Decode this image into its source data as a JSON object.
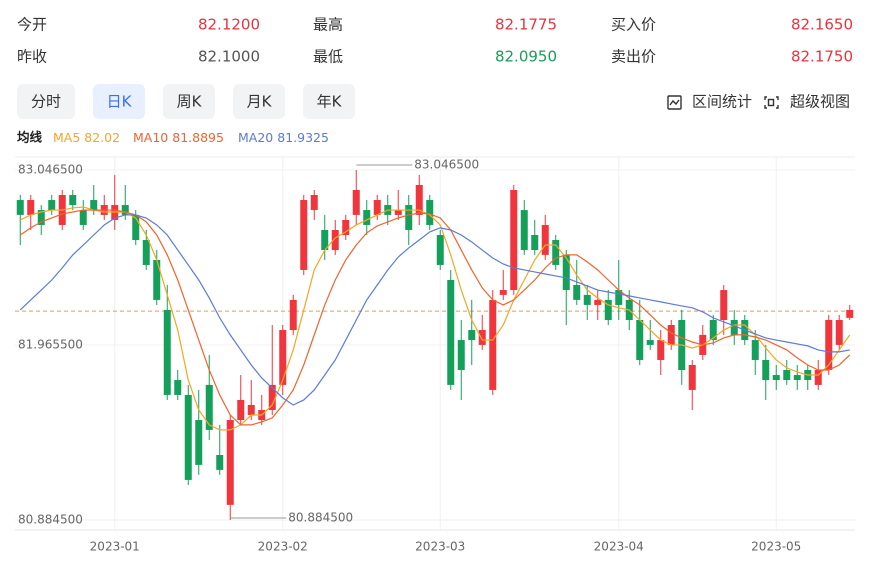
{
  "header": {
    "rows": [
      [
        {
          "label": "今开",
          "value": "82.1200",
          "tone": "up"
        },
        {
          "label": "最高",
          "value": "82.1775",
          "tone": "up"
        },
        {
          "label": "买入价",
          "value": "82.1650",
          "tone": "up"
        }
      ],
      [
        {
          "label": "昨收",
          "value": "82.1000",
          "tone": "flat"
        },
        {
          "label": "最低",
          "value": "82.0950",
          "tone": "down"
        },
        {
          "label": "卖出价",
          "value": "82.1750",
          "tone": "up"
        }
      ]
    ]
  },
  "tabs": [
    "分时",
    "日K",
    "周K",
    "月K",
    "年K"
  ],
  "active_tab": "日K",
  "tools": [
    "区间统计",
    "超级视图"
  ],
  "legend_title": "均线",
  "chart_data": {
    "type": "candlestick",
    "up_color": "#f0353d",
    "down_color": "#14a05a",
    "categories": [
      null,
      null,
      null,
      null,
      null,
      null,
      null,
      null,
      null,
      "2023-01",
      null,
      null,
      null,
      null,
      null,
      null,
      null,
      null,
      null,
      null,
      null,
      null,
      null,
      null,
      null,
      "2023-02",
      null,
      null,
      null,
      null,
      null,
      null,
      null,
      null,
      null,
      null,
      null,
      null,
      null,
      null,
      "2023-03",
      null,
      null,
      null,
      null,
      null,
      null,
      null,
      null,
      null,
      null,
      null,
      null,
      null,
      null,
      null,
      null,
      "2023-04",
      null,
      null,
      null,
      null,
      null,
      null,
      null,
      null,
      null,
      null,
      null,
      null,
      null,
      null,
      "2023-05",
      null,
      null,
      null,
      null,
      null,
      null,
      null
    ],
    "open": [
      82.861,
      82.769,
      82.799,
      82.861,
      82.707,
      82.892,
      82.799,
      82.861,
      82.769,
      82.738,
      82.83,
      82.769,
      82.614,
      82.491,
      82.182,
      81.749,
      81.657,
      81.502,
      81.719,
      81.286,
      80.978,
      81.502,
      81.533,
      81.502,
      81.564,
      81.719,
      82.058,
      82.429,
      82.799,
      82.676,
      82.552,
      82.645,
      82.769,
      82.799,
      82.769,
      82.83,
      82.769,
      82.83,
      82.769,
      82.861,
      82.645,
      82.367,
      81.996,
      82.058,
      81.966,
      81.688,
      82.275,
      82.305,
      82.799,
      82.645,
      82.522,
      82.614,
      82.522,
      82.336,
      82.275,
      82.213,
      82.244,
      82.305,
      82.244,
      82.12,
      81.996,
      81.873,
      81.966,
      82.12,
      81.688,
      81.904,
      82.12,
      82.12,
      82.12,
      82.12,
      81.996,
      81.873,
      81.78,
      81.811,
      81.78,
      81.811,
      81.719,
      81.811,
      81.966,
      82.133
    ],
    "close": [
      82.769,
      82.861,
      82.707,
      82.799,
      82.892,
      82.83,
      82.707,
      82.799,
      82.83,
      82.83,
      82.769,
      82.614,
      82.46,
      82.244,
      81.657,
      81.657,
      81.132,
      81.225,
      81.441,
      81.194,
      81.502,
      81.626,
      81.595,
      81.564,
      81.719,
      82.058,
      82.244,
      82.861,
      82.892,
      82.552,
      82.676,
      82.738,
      82.923,
      82.707,
      82.861,
      82.769,
      82.799,
      82.676,
      82.954,
      82.707,
      82.46,
      81.719,
      81.811,
      81.996,
      82.058,
      82.244,
      82.305,
      82.923,
      82.552,
      82.552,
      82.707,
      82.46,
      82.305,
      82.244,
      82.213,
      82.244,
      82.12,
      82.213,
      82.12,
      81.873,
      81.966,
      81.996,
      82.089,
      81.811,
      81.842,
      82.028,
      81.996,
      82.305,
      82.028,
      81.996,
      81.873,
      81.749,
      81.749,
      81.749,
      81.749,
      81.749,
      81.811,
      82.12,
      82.12,
      82.182
    ],
    "high": [
      82.892,
      82.892,
      82.83,
      82.892,
      82.923,
      82.923,
      82.861,
      82.954,
      82.892,
      83.016,
      82.954,
      82.799,
      82.676,
      82.552,
      82.336,
      81.811,
      81.719,
      81.688,
      81.904,
      81.472,
      81.533,
      81.78,
      81.749,
      81.657,
      82.089,
      82.089,
      82.275,
      82.892,
      82.923,
      82.769,
      82.738,
      82.769,
      83.0465,
      82.861,
      82.892,
      82.892,
      82.923,
      82.892,
      83.016,
      82.892,
      82.676,
      82.429,
      82.12,
      82.244,
      82.151,
      82.305,
      82.429,
      82.954,
      82.861,
      82.738,
      82.769,
      82.645,
      82.552,
      82.491,
      82.336,
      82.305,
      82.305,
      82.491,
      82.305,
      82.244,
      82.12,
      82.058,
      82.12,
      82.182,
      81.873,
      82.089,
      82.151,
      82.336,
      82.182,
      82.151,
      82.058,
      81.966,
      81.842,
      81.873,
      81.842,
      81.842,
      81.873,
      82.151,
      82.151,
      82.213
    ],
    "low": [
      82.583,
      82.676,
      82.645,
      82.769,
      82.676,
      82.799,
      82.676,
      82.769,
      82.738,
      82.676,
      82.738,
      82.583,
      82.429,
      82.213,
      81.626,
      81.626,
      81.101,
      81.163,
      81.379,
      81.163,
      80.8845,
      81.472,
      81.502,
      81.472,
      81.533,
      81.657,
      82.028,
      82.398,
      82.738,
      82.491,
      82.522,
      82.614,
      82.707,
      82.645,
      82.738,
      82.707,
      82.738,
      82.583,
      82.707,
      82.676,
      82.429,
      81.688,
      81.626,
      81.842,
      81.935,
      81.657,
      82.244,
      82.275,
      82.522,
      82.522,
      82.491,
      82.429,
      82.089,
      82.213,
      82.12,
      82.12,
      82.089,
      82.12,
      82.058,
      81.842,
      81.935,
      81.78,
      81.935,
      81.719,
      81.564,
      81.873,
      81.966,
      82.028,
      81.966,
      81.966,
      81.78,
      81.626,
      81.688,
      81.719,
      81.688,
      81.688,
      81.688,
      81.78,
      81.935,
      82.12
    ],
    "series": [
      {
        "name": "MA5",
        "legend_value": "82.02",
        "color": "#f5a623",
        "values": [
          82.738,
          82.769,
          82.787,
          82.799,
          82.799,
          82.812,
          82.818,
          82.799,
          82.787,
          82.787,
          82.787,
          82.75,
          82.645,
          82.491,
          82.275,
          82.058,
          81.749,
          81.564,
          81.472,
          81.441,
          81.441,
          81.472,
          81.533,
          81.533,
          81.595,
          81.749,
          81.935,
          82.182,
          82.429,
          82.552,
          82.627,
          82.664,
          82.707,
          82.738,
          82.769,
          82.799,
          82.799,
          82.799,
          82.799,
          82.769,
          82.707,
          82.522,
          82.305,
          82.12,
          81.996,
          81.996,
          82.089,
          82.244,
          82.367,
          82.491,
          82.583,
          82.583,
          82.503,
          82.398,
          82.305,
          82.256,
          82.213,
          82.195,
          82.182,
          82.12,
          82.058,
          81.996,
          81.966,
          81.966,
          81.947,
          81.966,
          82.009,
          82.058,
          82.089,
          82.089,
          82.028,
          81.947,
          81.873,
          81.824,
          81.799,
          81.78,
          81.78,
          81.842,
          81.935,
          82.028
        ]
      },
      {
        "name": "MA10",
        "legend_value": "81.8895",
        "color": "#f0642d",
        "values": [
          82.645,
          82.689,
          82.726,
          82.75,
          82.775,
          82.787,
          82.799,
          82.799,
          82.799,
          82.799,
          82.787,
          82.769,
          82.726,
          82.645,
          82.522,
          82.367,
          82.182,
          81.996,
          81.811,
          81.657,
          81.533,
          81.472,
          81.472,
          81.49,
          81.515,
          81.595,
          81.688,
          81.842,
          82.028,
          82.213,
          82.367,
          82.491,
          82.583,
          82.658,
          82.701,
          82.726,
          82.75,
          82.769,
          82.781,
          82.775,
          82.75,
          82.676,
          82.552,
          82.429,
          82.318,
          82.244,
          82.213,
          82.244,
          82.305,
          82.367,
          82.442,
          82.503,
          82.522,
          82.522,
          82.479,
          82.429,
          82.367,
          82.305,
          82.256,
          82.213,
          82.151,
          82.089,
          82.04,
          82.009,
          81.984,
          81.966,
          81.978,
          82.009,
          82.028,
          82.028,
          82.015,
          81.996,
          81.966,
          81.935,
          81.886,
          81.842,
          81.811,
          81.811,
          81.842,
          81.904
        ]
      },
      {
        "name": "MA20",
        "legend_value": "81.9325",
        "color": "#5b7bd5",
        "values": [
          82.182,
          82.244,
          82.305,
          82.367,
          82.442,
          82.522,
          82.583,
          82.645,
          82.707,
          82.75,
          82.769,
          82.769,
          82.75,
          82.707,
          82.645,
          82.552,
          82.46,
          82.367,
          82.256,
          82.133,
          82.028,
          81.935,
          81.842,
          81.762,
          81.7,
          81.639,
          81.595,
          81.626,
          81.688,
          81.78,
          81.873,
          81.996,
          82.12,
          82.244,
          82.336,
          82.429,
          82.509,
          82.565,
          82.614,
          82.664,
          82.689,
          82.676,
          82.645,
          82.602,
          82.552,
          82.503,
          82.466,
          82.442,
          82.429,
          82.417,
          82.404,
          82.392,
          82.38,
          82.355,
          82.33,
          82.305,
          82.293,
          82.281,
          82.269,
          82.256,
          82.244,
          82.232,
          82.219,
          82.207,
          82.195,
          82.17,
          82.133,
          82.108,
          82.084,
          82.058,
          82.034,
          82.009,
          81.996,
          81.984,
          81.972,
          81.96,
          81.935,
          81.923,
          81.923,
          81.935
        ]
      }
    ],
    "ref_line": 82.175,
    "ref_color": "#f5964a",
    "high_label": "83.046500",
    "low_label": "80.884500",
    "ylim": [
      80.8845,
      83.0465
    ],
    "yticks": [
      {
        "value": 83.0465,
        "label": "83.046500"
      },
      {
        "value": 81.9655,
        "label": "81.965500"
      },
      {
        "value": 80.8845,
        "label": "80.884500"
      }
    ],
    "grid": true
  }
}
